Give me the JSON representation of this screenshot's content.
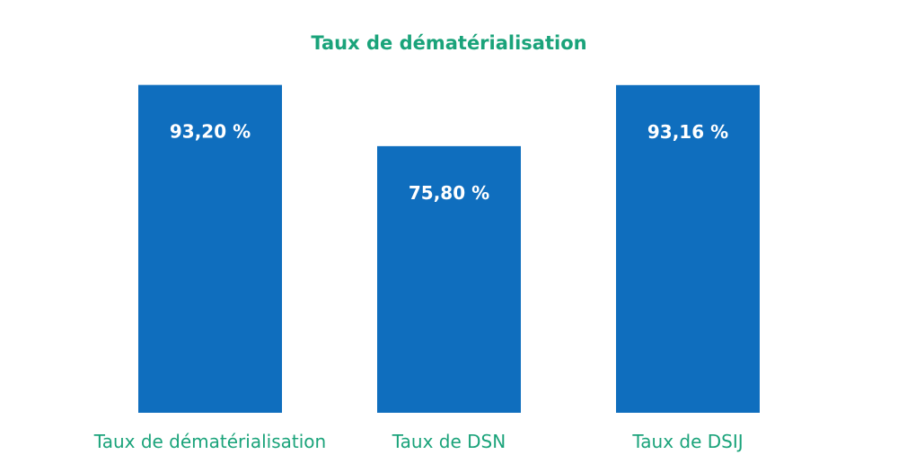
{
  "chart_data": {
    "type": "bar",
    "title": "Taux de dématérialisation",
    "categories": [
      "Taux de dématérialisation",
      "Taux de DSN",
      "Taux de DSIJ"
    ],
    "values": [
      93.2,
      75.8,
      93.16
    ],
    "value_labels": [
      "93,20 %",
      "75,80 %",
      "93,16 %"
    ],
    "ylim": [
      0,
      100
    ],
    "xlabel": "",
    "ylabel": "",
    "grid": false,
    "legend": "none",
    "colors": {
      "bar": "#0f6ebe",
      "title": "#1aa37a",
      "category_text": "#1aa37a",
      "value_text": "#ffffff"
    }
  }
}
